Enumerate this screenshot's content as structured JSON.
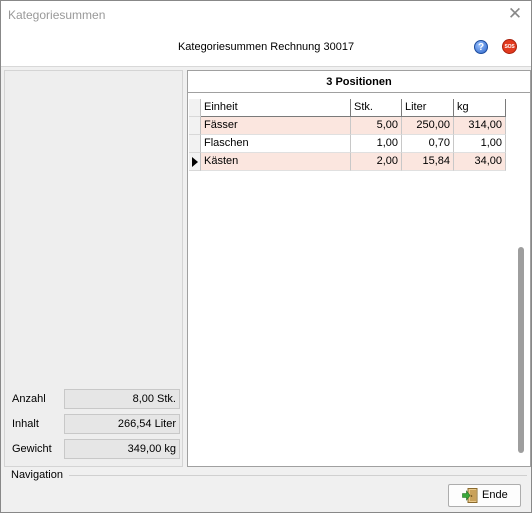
{
  "window": {
    "title": "Kategoriesummen",
    "close_glyph": "✕"
  },
  "header": {
    "title": "Kategoriesummen Rechnung 30017",
    "help_glyph": "?",
    "sos_label": "SOS"
  },
  "stats": {
    "anzahl_label": "Anzahl",
    "anzahl_value": "8,00 Stk.",
    "inhalt_label": "Inhalt",
    "inhalt_value": "266,54 Liter",
    "gewicht_label": "Gewicht",
    "gewicht_value": "349,00 kg"
  },
  "grid": {
    "title": "3 Positionen",
    "columns": [
      "Einheit",
      "Stk.",
      "Liter",
      "kg"
    ],
    "rows": [
      [
        "Fässer",
        "5,00",
        "250,00",
        "314,00"
      ],
      [
        "Flaschen",
        "1,00",
        "0,70",
        "1,00"
      ],
      [
        "Kästen",
        "2,00",
        "15,84",
        "34,00"
      ]
    ],
    "current_row": 2,
    "highlight_color": "#fbe6df"
  },
  "navigation": {
    "label": "Navigation",
    "ende_label": "Ende",
    "ende_icon": "exit-door-icon"
  }
}
